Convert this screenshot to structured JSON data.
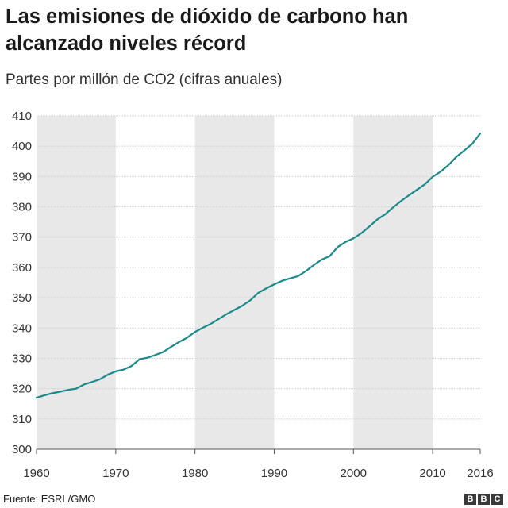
{
  "title": "Las emisiones de dióxido de carbono han alcanzado niveles récord",
  "subtitle": "Partes por millón de CO2 (cifras anuales)",
  "source": "Fuente: ESRL/GMO",
  "logo": {
    "letters": [
      "B",
      "B",
      "C"
    ]
  },
  "colors": {
    "line": "#1a8a8a",
    "band": "#e8e8e8",
    "text": "#222222"
  },
  "chart_data": {
    "type": "line",
    "title": "Las emisiones de dióxido de carbono han alcanzado niveles récord",
    "subtitle": "Partes por millón de CO2 (cifras anuales)",
    "xlabel": "",
    "ylabel": "",
    "xlim": [
      1960,
      2016
    ],
    "ylim": [
      300,
      410
    ],
    "x_ticks": [
      1960,
      1970,
      1980,
      1990,
      2000,
      2010,
      2016
    ],
    "y_ticks": [
      300,
      310,
      320,
      330,
      340,
      350,
      360,
      370,
      380,
      390,
      400,
      410
    ],
    "shaded_decades": [
      [
        1960,
        1970
      ],
      [
        1980,
        1990
      ],
      [
        2000,
        2010
      ]
    ],
    "grid": true,
    "x": [
      1960,
      1961,
      1962,
      1963,
      1964,
      1965,
      1966,
      1967,
      1968,
      1969,
      1970,
      1971,
      1972,
      1973,
      1974,
      1975,
      1976,
      1977,
      1978,
      1979,
      1980,
      1981,
      1982,
      1983,
      1984,
      1985,
      1986,
      1987,
      1988,
      1989,
      1990,
      1991,
      1992,
      1993,
      1994,
      1995,
      1996,
      1997,
      1998,
      1999,
      2000,
      2001,
      2002,
      2003,
      2004,
      2005,
      2006,
      2007,
      2008,
      2009,
      2010,
      2011,
      2012,
      2013,
      2014,
      2015,
      2016
    ],
    "y": [
      317.0,
      317.8,
      318.5,
      319.0,
      319.6,
      320.0,
      321.4,
      322.2,
      323.1,
      324.6,
      325.7,
      326.3,
      327.5,
      329.7,
      330.2,
      331.1,
      332.1,
      333.8,
      335.4,
      336.8,
      338.7,
      340.1,
      341.4,
      343.0,
      344.6,
      346.0,
      347.4,
      349.2,
      351.6,
      353.1,
      354.4,
      355.6,
      356.4,
      357.1,
      358.8,
      360.8,
      362.6,
      363.7,
      366.7,
      368.4,
      369.6,
      371.3,
      373.5,
      375.8,
      377.5,
      379.8,
      381.9,
      383.8,
      385.6,
      387.4,
      389.9,
      391.6,
      393.8,
      396.5,
      398.6,
      400.8,
      404.2
    ]
  }
}
